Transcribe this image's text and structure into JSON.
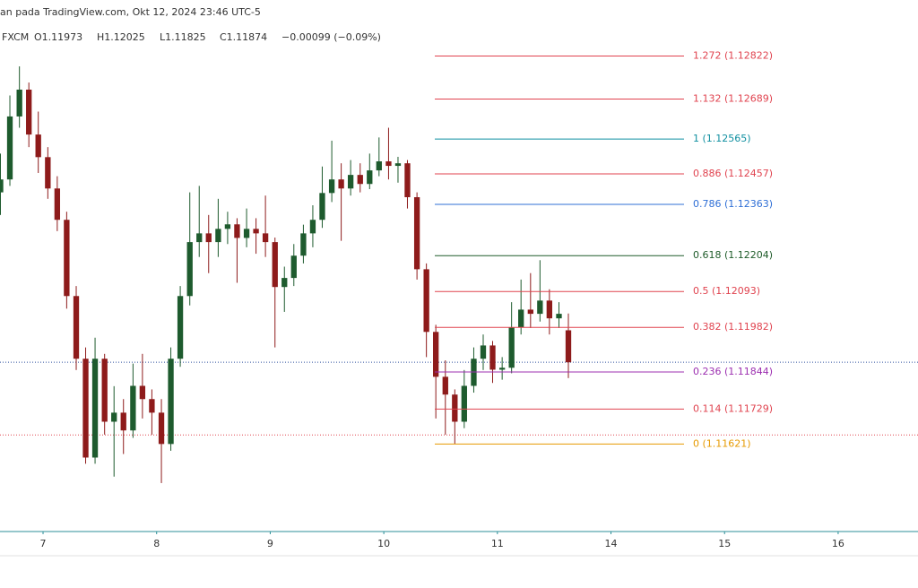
{
  "header": {
    "source": "an pada TradingView.com, Okt 12, 2024 23:46 UTC-5",
    "symbol": "FXCM",
    "open": "O1.11973",
    "high": "H1.12025",
    "low": "L1.11825",
    "close": "C1.11874",
    "change": "−0.00099 (−0.09%)"
  },
  "chart_data": {
    "type": "candlestick",
    "up_color": "#1e5b2e",
    "down_color": "#8e1b1b",
    "x": [
      6.625,
      6.708,
      6.792,
      6.875,
      6.958,
      7.042,
      7.125,
      7.208,
      7.292,
      7.375,
      7.458,
      7.542,
      7.625,
      7.708,
      7.792,
      7.875,
      7.958,
      8.042,
      8.125,
      8.208,
      8.292,
      8.375,
      8.458,
      8.542,
      8.625,
      8.708,
      8.792,
      8.875,
      8.958,
      9.042,
      9.125,
      9.208,
      9.292,
      9.375,
      9.458,
      9.542,
      9.625,
      9.708,
      9.792,
      9.875,
      9.958,
      10.042,
      10.125,
      10.208,
      10.292,
      10.375,
      10.458,
      10.542,
      10.625,
      10.708,
      10.792,
      10.875,
      10.958,
      11.042,
      11.125,
      11.208,
      11.292,
      11.375,
      11.458,
      11.542,
      11.625
    ],
    "open": [
      1.124,
      1.1244,
      1.12635,
      1.12718,
      1.12579,
      1.12509,
      1.12412,
      1.12315,
      1.12079,
      1.11885,
      1.11579,
      1.11885,
      1.1169,
      1.11718,
      1.11663,
      1.11801,
      1.1176,
      1.11718,
      1.11621,
      1.11885,
      1.12079,
      1.12246,
      1.12273,
      1.12246,
      1.12287,
      1.12301,
      1.12259,
      1.12287,
      1.12273,
      1.12246,
      1.12107,
      1.12135,
      1.12204,
      1.12273,
      1.12315,
      1.12398,
      1.1244,
      1.12412,
      1.12454,
      1.12426,
      1.12468,
      1.12496,
      1.12482,
      1.1249,
      1.12385,
      1.12162,
      1.11968,
      1.11829,
      1.11774,
      1.1169,
      1.11801,
      1.11885,
      1.11926,
      1.11851,
      1.11857,
      1.11982,
      1.12037,
      1.12024,
      1.12065,
      1.1201,
      1.11973
    ],
    "high": [
      1.1252,
      1.127,
      1.1279,
      1.1274,
      1.1265,
      1.1254,
      1.1245,
      1.1234,
      1.1211,
      1.1192,
      1.1195,
      1.119,
      1.118,
      1.1176,
      1.1187,
      1.119,
      1.1179,
      1.1176,
      1.1192,
      1.1211,
      1.124,
      1.1242,
      1.1233,
      1.1238,
      1.1234,
      1.1232,
      1.1235,
      1.1232,
      1.1239,
      1.1226,
      1.1217,
      1.1224,
      1.123,
      1.1236,
      1.1248,
      1.1256,
      1.1249,
      1.125,
      1.1249,
      1.1252,
      1.1257,
      1.126,
      1.1251,
      1.125,
      1.124,
      1.1218,
      1.1199,
      1.1188,
      1.1179,
      1.1185,
      1.1192,
      1.1196,
      1.1194,
      1.1189,
      1.1206,
      1.1213,
      1.1215,
      1.1219,
      1.121,
      1.1206,
      1.12025
    ],
    "low": [
      1.1233,
      1.1242,
      1.126,
      1.1254,
      1.1246,
      1.1238,
      1.1228,
      1.1204,
      1.1185,
      1.1156,
      1.1156,
      1.1165,
      1.1152,
      1.1159,
      1.1164,
      1.117,
      1.1165,
      1.115,
      1.116,
      1.1186,
      1.1205,
      1.122,
      1.1215,
      1.122,
      1.1224,
      1.1212,
      1.1223,
      1.1221,
      1.122,
      1.1192,
      1.1203,
      1.1211,
      1.1218,
      1.1223,
      1.1229,
      1.1237,
      1.1225,
      1.1239,
      1.124,
      1.1241,
      1.1245,
      1.1244,
      1.1243,
      1.1235,
      1.1213,
      1.1189,
      1.117,
      1.1165,
      1.11621,
      1.1167,
      1.1178,
      1.1185,
      1.1181,
      1.1182,
      1.1184,
      1.1196,
      1.1198,
      1.12,
      1.1196,
      1.1198,
      1.11825
    ],
    "close": [
      1.1244,
      1.12635,
      1.12718,
      1.12579,
      1.12509,
      1.12412,
      1.12315,
      1.12079,
      1.11885,
      1.11579,
      1.11885,
      1.1169,
      1.11718,
      1.11663,
      1.11801,
      1.1176,
      1.11718,
      1.11621,
      1.11885,
      1.12079,
      1.12246,
      1.12273,
      1.12246,
      1.12287,
      1.12301,
      1.12259,
      1.12287,
      1.12273,
      1.12246,
      1.12107,
      1.12135,
      1.12204,
      1.12273,
      1.12315,
      1.12398,
      1.1244,
      1.12412,
      1.12454,
      1.12426,
      1.12468,
      1.12496,
      1.12482,
      1.1249,
      1.12385,
      1.12162,
      1.11968,
      1.11829,
      1.11774,
      1.1169,
      1.11801,
      1.11885,
      1.11926,
      1.11851,
      1.11857,
      1.11982,
      1.12037,
      1.12024,
      1.12065,
      1.1201,
      1.12024,
      1.11874
    ],
    "xlim": [
      6.621,
      14.703
    ],
    "ylim": [
      1.1135,
      1.1294
    ],
    "xticks": [
      7,
      8,
      9,
      10,
      11,
      {
        "value": 12,
        "label": "14"
      },
      {
        "value": 13,
        "label": "15"
      },
      {
        "value": 14,
        "label": "16"
      }
    ],
    "fib_levels": [
      {
        "label": "1.272 (1.12822)",
        "value": 1.12822,
        "color": "#e0434f"
      },
      {
        "label": "1.132 (1.12689)",
        "value": 1.12689,
        "color": "#e0434f"
      },
      {
        "label": "1 (1.12565)",
        "value": 1.12565,
        "color": "#0f8fa0"
      },
      {
        "label": "0.886 (1.12457)",
        "value": 1.12457,
        "color": "#e0434f"
      },
      {
        "label": "0.786 (1.12363)",
        "value": 1.12363,
        "color": "#2f6fd6"
      },
      {
        "label": "0.618 (1.12204)",
        "value": 1.12204,
        "color": "#1f5c2a"
      },
      {
        "label": "0.5 (1.12093)",
        "value": 1.12093,
        "color": "#e0434f"
      },
      {
        "label": "0.382 (1.11982)",
        "value": 1.11982,
        "color": "#e0434f"
      },
      {
        "label": "0.236 (1.11844)",
        "value": 1.11844,
        "color": "#9c2fb0"
      },
      {
        "label": "0.114 (1.11729)",
        "value": 1.11729,
        "color": "#e0434f"
      },
      {
        "label": "0 (1.11621)",
        "value": 1.11621,
        "color": "#e69a00"
      }
    ],
    "price_lines": [
      {
        "value": 1.11874,
        "color": "#2a4d9e"
      },
      {
        "value": 1.11649,
        "color": "#e0434f"
      }
    ]
  }
}
